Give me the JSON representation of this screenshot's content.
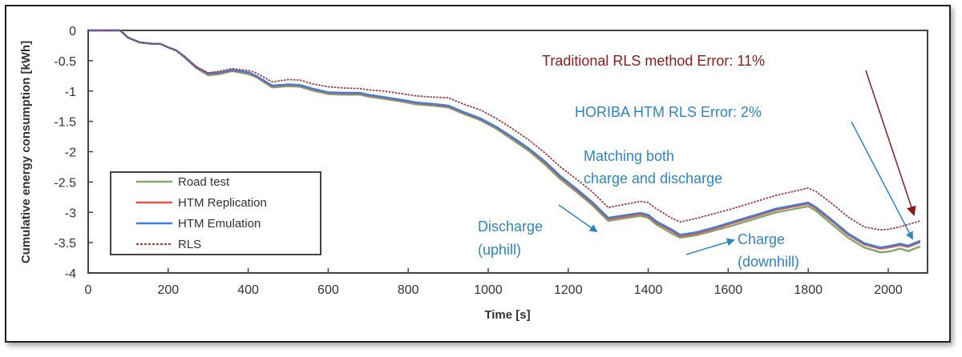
{
  "chart_data": {
    "type": "line",
    "title": "",
    "xlabel": "Time [s]",
    "ylabel": "Cumulative energy consumption [kWh]",
    "xlim": [
      0,
      2095
    ],
    "ylim": [
      -4,
      0
    ],
    "xticks": [
      0,
      200,
      400,
      600,
      800,
      1000,
      1200,
      1400,
      1600,
      1800,
      2000
    ],
    "xtick_labels": [
      "0",
      "200",
      "400",
      "600",
      "800",
      "1000",
      "1200",
      "1400",
      "1600",
      "1800",
      "2000"
    ],
    "yticks": [
      0,
      -0.5,
      -1,
      -1.5,
      -2,
      -2.5,
      -3,
      -3.5,
      -4
    ],
    "ytick_labels": [
      "0",
      "-0.5",
      "-1",
      "-1.5",
      "-2",
      "-2.5",
      "-3",
      "-3.5",
      "-4"
    ],
    "grid": false,
    "legend_position": "bottom-left",
    "x": [
      0,
      60,
      80,
      100,
      130,
      160,
      180,
      200,
      220,
      240,
      270,
      300,
      330,
      360,
      400,
      420,
      460,
      500,
      530,
      560,
      600,
      640,
      680,
      700,
      740,
      780,
      820,
      860,
      900,
      940,
      980,
      1020,
      1060,
      1100,
      1140,
      1180,
      1220,
      1260,
      1300,
      1340,
      1380,
      1400,
      1420,
      1460,
      1480,
      1520,
      1560,
      1600,
      1640,
      1680,
      1720,
      1760,
      1800,
      1820,
      1860,
      1900,
      1940,
      1980,
      2000,
      2030,
      2050,
      2080
    ],
    "series": [
      {
        "name": "Road test",
        "color": "#7fa86a",
        "dash": "solid",
        "values": [
          0,
          0,
          0,
          -0.12,
          -0.2,
          -0.22,
          -0.22,
          -0.28,
          -0.33,
          -0.44,
          -0.62,
          -0.74,
          -0.72,
          -0.67,
          -0.72,
          -0.77,
          -0.94,
          -0.92,
          -0.93,
          -0.99,
          -1.05,
          -1.06,
          -1.06,
          -1.09,
          -1.13,
          -1.17,
          -1.22,
          -1.24,
          -1.27,
          -1.38,
          -1.48,
          -1.62,
          -1.8,
          -1.98,
          -2.2,
          -2.45,
          -2.66,
          -2.88,
          -3.14,
          -3.1,
          -3.06,
          -3.09,
          -3.2,
          -3.35,
          -3.42,
          -3.38,
          -3.31,
          -3.24,
          -3.16,
          -3.08,
          -3.0,
          -2.95,
          -2.9,
          -2.98,
          -3.2,
          -3.42,
          -3.58,
          -3.66,
          -3.65,
          -3.6,
          -3.64,
          -3.56
        ]
      },
      {
        "name": "HTM Replication",
        "color": "#e8504f",
        "dash": "solid",
        "values": [
          0,
          0,
          0,
          -0.12,
          -0.2,
          -0.22,
          -0.22,
          -0.28,
          -0.33,
          -0.43,
          -0.61,
          -0.72,
          -0.7,
          -0.66,
          -0.7,
          -0.76,
          -0.92,
          -0.9,
          -0.91,
          -0.97,
          -1.03,
          -1.04,
          -1.04,
          -1.07,
          -1.11,
          -1.15,
          -1.2,
          -1.22,
          -1.25,
          -1.36,
          -1.46,
          -1.6,
          -1.77,
          -1.95,
          -2.17,
          -2.42,
          -2.63,
          -2.85,
          -3.11,
          -3.07,
          -3.03,
          -3.06,
          -3.17,
          -3.31,
          -3.39,
          -3.35,
          -3.28,
          -3.2,
          -3.12,
          -3.04,
          -2.96,
          -2.91,
          -2.86,
          -2.94,
          -3.15,
          -3.37,
          -3.53,
          -3.6,
          -3.58,
          -3.54,
          -3.57,
          -3.49
        ]
      },
      {
        "name": "HTM Emulation",
        "color": "#3f7fd6",
        "dash": "solid",
        "values": [
          0,
          0,
          0,
          -0.12,
          -0.2,
          -0.22,
          -0.22,
          -0.28,
          -0.33,
          -0.43,
          -0.6,
          -0.71,
          -0.69,
          -0.65,
          -0.69,
          -0.75,
          -0.91,
          -0.89,
          -0.9,
          -0.96,
          -1.02,
          -1.03,
          -1.03,
          -1.06,
          -1.1,
          -1.14,
          -1.19,
          -1.21,
          -1.24,
          -1.35,
          -1.45,
          -1.59,
          -1.76,
          -1.94,
          -2.15,
          -2.4,
          -2.61,
          -2.83,
          -3.09,
          -3.05,
          -3.01,
          -3.04,
          -3.15,
          -3.29,
          -3.37,
          -3.33,
          -3.26,
          -3.18,
          -3.1,
          -3.02,
          -2.94,
          -2.89,
          -2.84,
          -2.92,
          -3.13,
          -3.35,
          -3.51,
          -3.58,
          -3.56,
          -3.52,
          -3.55,
          -3.47
        ]
      },
      {
        "name": "RLS",
        "color": "#a03c3c",
        "dash": "dotted",
        "values": [
          0,
          0,
          0,
          -0.12,
          -0.2,
          -0.22,
          -0.22,
          -0.28,
          -0.33,
          -0.42,
          -0.6,
          -0.7,
          -0.67,
          -0.63,
          -0.66,
          -0.7,
          -0.85,
          -0.81,
          -0.82,
          -0.88,
          -0.93,
          -0.95,
          -0.96,
          -0.98,
          -1.0,
          -1.04,
          -1.08,
          -1.1,
          -1.11,
          -1.22,
          -1.31,
          -1.45,
          -1.62,
          -1.8,
          -2.01,
          -2.25,
          -2.45,
          -2.66,
          -2.92,
          -2.87,
          -2.82,
          -2.84,
          -2.94,
          -3.1,
          -3.16,
          -3.1,
          -3.03,
          -2.96,
          -2.88,
          -2.8,
          -2.72,
          -2.66,
          -2.6,
          -2.66,
          -2.86,
          -3.08,
          -3.24,
          -3.29,
          -3.28,
          -3.24,
          -3.2,
          -3.14
        ]
      }
    ],
    "annotations": [
      {
        "text": "Traditional RLS method Error: 11%",
        "color": "#8b1a1a",
        "arrow_to": [
          2075,
          -3.15
        ]
      },
      {
        "text": "HORIBA HTM RLS Error: 2%",
        "color": "#2e86c1",
        "arrow_to": [
          2070,
          -3.46
        ]
      },
      {
        "text": "Matching both",
        "color": "#2e86c1"
      },
      {
        "text": "charge and discharge",
        "color": "#2e86c1"
      },
      {
        "text": "Discharge",
        "color": "#2e86c1",
        "arrow_to": [
          1280,
          -3.25
        ]
      },
      {
        "text": "(uphill)",
        "color": "#2e86c1"
      },
      {
        "text": "Charge",
        "color": "#2e86c1",
        "arrow_from": [
          1495,
          -3.69
        ]
      },
      {
        "text": "(downhill)",
        "color": "#2e86c1"
      }
    ]
  }
}
